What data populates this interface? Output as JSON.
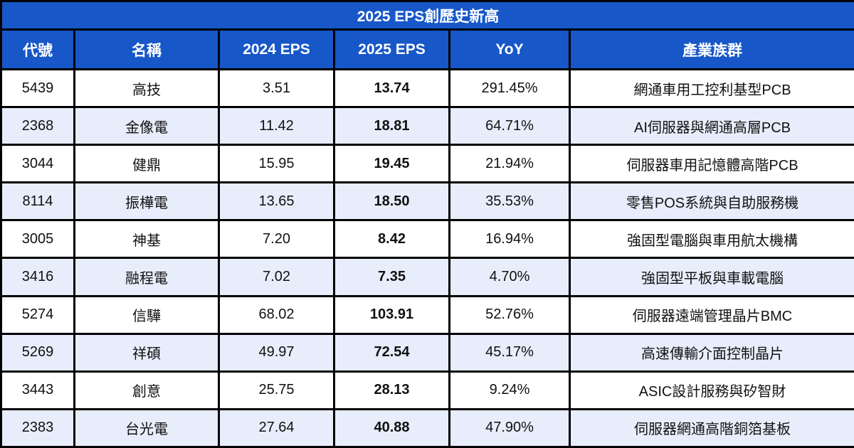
{
  "title": "2025 EPS創歷史新高",
  "columns": [
    "代號",
    "名稱",
    "2024 EPS",
    "2025 EPS",
    "YoY",
    "產業族群"
  ],
  "rows": [
    [
      "5439",
      "高技",
      "3.51",
      "13.74",
      "291.45%",
      "網通車用工控利基型PCB"
    ],
    [
      "2368",
      "金像電",
      "11.42",
      "18.81",
      "64.71%",
      "AI伺服器與網通高層PCB"
    ],
    [
      "3044",
      "健鼎",
      "15.95",
      "19.45",
      "21.94%",
      "伺服器車用記憶體高階PCB"
    ],
    [
      "8114",
      "振樺電",
      "13.65",
      "18.50",
      "35.53%",
      "零售POS系統與自助服務機"
    ],
    [
      "3005",
      "神基",
      "7.20",
      "8.42",
      "16.94%",
      "強固型電腦與車用航太機構"
    ],
    [
      "3416",
      "融程電",
      "7.02",
      "7.35",
      "4.70%",
      "強固型平板與車載電腦"
    ],
    [
      "5274",
      "信驊",
      "68.02",
      "103.91",
      "52.76%",
      "伺服器遠端管理晶片BMC"
    ],
    [
      "5269",
      "祥碩",
      "49.97",
      "72.54",
      "45.17%",
      "高速傳輸介面控制晶片"
    ],
    [
      "3443",
      "創意",
      "25.75",
      "28.13",
      "9.24%",
      "ASIC設計服務與矽智財"
    ],
    [
      "2383",
      "台光電",
      "27.64",
      "40.88",
      "47.90%",
      "伺服器網通高階銅箔基板"
    ]
  ],
  "colors": {
    "header_bg": "#1757c8",
    "header_text": "#ffffff",
    "alt_row_bg": "#e8edfb",
    "border": "#000000",
    "body_text": "#111111"
  },
  "chart_data": {
    "type": "table",
    "title": "2025 EPS創歷史新高",
    "columns": [
      "代號",
      "名稱",
      "2024 EPS",
      "2025 EPS",
      "YoY",
      "產業族群"
    ],
    "rows": [
      {
        "code": "5439",
        "name": "高技",
        "eps_2024": 3.51,
        "eps_2025": 13.74,
        "yoy_pct": 291.45,
        "sector": "網通車用工控利基型PCB"
      },
      {
        "code": "2368",
        "name": "金像電",
        "eps_2024": 11.42,
        "eps_2025": 18.81,
        "yoy_pct": 64.71,
        "sector": "AI伺服器與網通高層PCB"
      },
      {
        "code": "3044",
        "name": "健鼎",
        "eps_2024": 15.95,
        "eps_2025": 19.45,
        "yoy_pct": 21.94,
        "sector": "伺服器車用記憶體高階PCB"
      },
      {
        "code": "8114",
        "name": "振樺電",
        "eps_2024": 13.65,
        "eps_2025": 18.5,
        "yoy_pct": 35.53,
        "sector": "零售POS系統與自助服務機"
      },
      {
        "code": "3005",
        "name": "神基",
        "eps_2024": 7.2,
        "eps_2025": 8.42,
        "yoy_pct": 16.94,
        "sector": "強固型電腦與車用航太機構"
      },
      {
        "code": "3416",
        "name": "融程電",
        "eps_2024": 7.02,
        "eps_2025": 7.35,
        "yoy_pct": 4.7,
        "sector": "強固型平板與車載電腦"
      },
      {
        "code": "5274",
        "name": "信驊",
        "eps_2024": 68.02,
        "eps_2025": 103.91,
        "yoy_pct": 52.76,
        "sector": "伺服器遠端管理晶片BMC"
      },
      {
        "code": "5269",
        "name": "祥碩",
        "eps_2024": 49.97,
        "eps_2025": 72.54,
        "yoy_pct": 45.17,
        "sector": "高速傳輸介面控制晶片"
      },
      {
        "code": "3443",
        "name": "創意",
        "eps_2024": 25.75,
        "eps_2025": 28.13,
        "yoy_pct": 9.24,
        "sector": "ASIC設計服務與矽智財"
      },
      {
        "code": "2383",
        "name": "台光電",
        "eps_2024": 27.64,
        "eps_2025": 40.88,
        "yoy_pct": 47.9,
        "sector": "伺服器網通高階銅箔基板"
      }
    ]
  }
}
